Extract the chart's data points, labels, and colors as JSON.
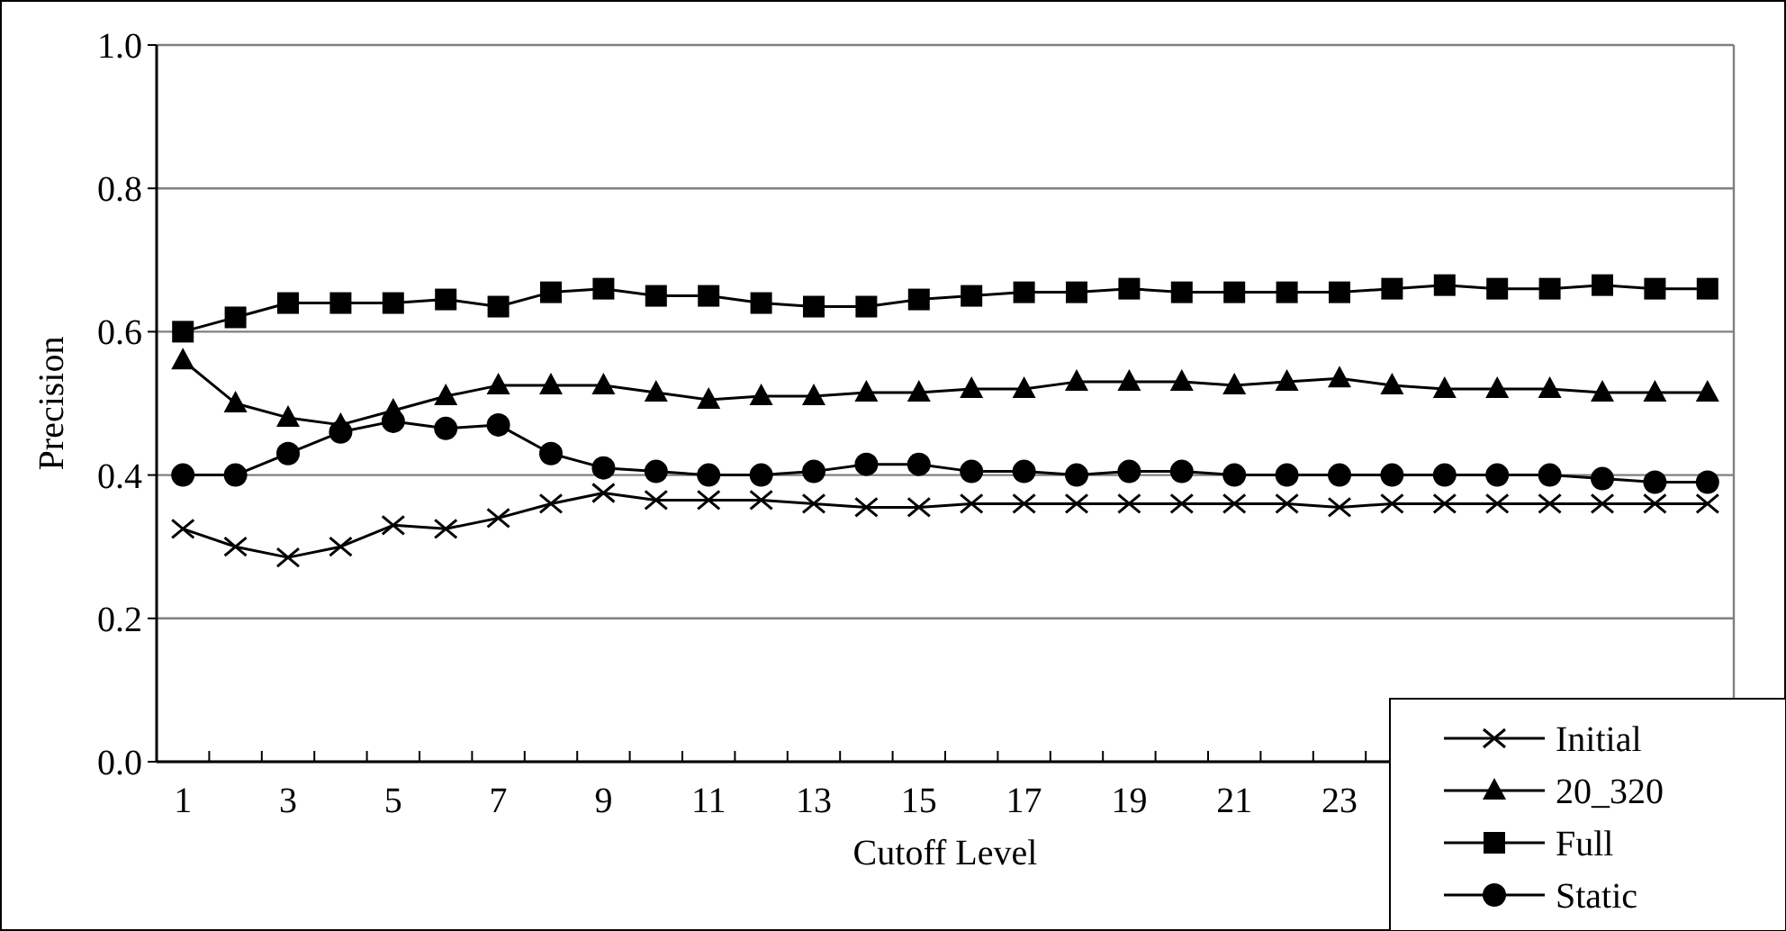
{
  "chart_data": {
    "type": "line",
    "xlabel": "Cutoff Level",
    "ylabel": "Precision",
    "x": [
      1,
      2,
      3,
      4,
      5,
      6,
      7,
      8,
      9,
      10,
      11,
      12,
      13,
      14,
      15,
      16,
      17,
      18,
      19,
      20,
      21,
      22,
      23,
      24,
      25,
      26,
      27,
      28,
      29,
      30
    ],
    "xlim": [
      0.5,
      30.5
    ],
    "xticks": [
      1,
      3,
      5,
      7,
      9,
      11,
      13,
      15,
      17,
      19,
      21,
      23,
      {
        "value": 0.5,
        "label": null
      },
      {
        "value": 1.5,
        "label": null
      },
      {
        "value": 2.5,
        "label": null
      },
      {
        "value": 3.5,
        "label": null
      },
      {
        "value": 4.5,
        "label": null
      },
      {
        "value": 5.5,
        "label": null
      },
      {
        "value": 6.5,
        "label": null
      },
      {
        "value": 7.5,
        "label": null
      },
      {
        "value": 8.5,
        "label": null
      },
      {
        "value": 9.5,
        "label": null
      },
      {
        "value": 10.5,
        "label": null
      },
      {
        "value": 11.5,
        "label": null
      },
      {
        "value": 12.5,
        "label": null
      },
      {
        "value": 13.5,
        "label": null
      },
      {
        "value": 14.5,
        "label": null
      },
      {
        "value": 15.5,
        "label": null
      },
      {
        "value": 16.5,
        "label": null
      },
      {
        "value": 17.5,
        "label": null
      },
      {
        "value": 18.5,
        "label": null
      },
      {
        "value": 19.5,
        "label": null
      },
      {
        "value": 20.5,
        "label": null
      },
      {
        "value": 21.5,
        "label": null
      },
      {
        "value": 22.5,
        "label": null
      },
      {
        "value": 23.5,
        "label": null
      }
    ],
    "series": [
      {
        "name": "Initial",
        "color": "#000000",
        "marker": "cross",
        "values": [
          0.325,
          0.3,
          0.285,
          0.3,
          0.33,
          0.325,
          0.34,
          0.36,
          0.375,
          0.365,
          0.365,
          0.365,
          0.36,
          0.355,
          0.355,
          0.36,
          0.36,
          0.36,
          0.36,
          0.36,
          0.36,
          0.36,
          0.355,
          0.36,
          0.36,
          0.36,
          0.36,
          0.36,
          0.36,
          0.36
        ]
      },
      {
        "name": "20_320",
        "color": "#000000",
        "marker": "triangle",
        "values": [
          0.56,
          0.5,
          0.48,
          0.47,
          0.49,
          0.51,
          0.525,
          0.525,
          0.525,
          0.515,
          0.505,
          0.51,
          0.51,
          0.515,
          0.515,
          0.52,
          0.52,
          0.53,
          0.53,
          0.53,
          0.525,
          0.53,
          0.535,
          0.525,
          0.52,
          0.52,
          0.52,
          0.515,
          0.515,
          0.515
        ]
      },
      {
        "name": "Full",
        "color": "#000000",
        "marker": "square",
        "values": [
          0.6,
          0.62,
          0.64,
          0.64,
          0.64,
          0.645,
          0.635,
          0.655,
          0.66,
          0.65,
          0.65,
          0.64,
          0.635,
          0.635,
          0.645,
          0.65,
          0.655,
          0.655,
          0.66,
          0.655,
          0.655,
          0.655,
          0.655,
          0.66,
          0.665,
          0.66,
          0.66,
          0.665,
          0.66,
          0.66
        ]
      },
      {
        "name": "Static",
        "color": "#000000",
        "marker": "circle",
        "values": [
          0.4,
          0.4,
          0.43,
          0.46,
          0.475,
          0.465,
          0.47,
          0.43,
          0.41,
          0.405,
          0.4,
          0.4,
          0.405,
          0.415,
          0.415,
          0.405,
          0.405,
          0.4,
          0.405,
          0.405,
          0.4,
          0.4,
          0.4,
          0.4,
          0.4,
          0.4,
          0.4,
          0.395,
          0.39,
          0.39
        ]
      }
    ],
    "ylim": [
      0,
      1
    ],
    "yticks": [
      {
        "value": 0,
        "label": "0.0"
      },
      {
        "value": 0.2,
        "label": "0.2"
      },
      {
        "value": 0.4,
        "label": "0.4"
      },
      {
        "value": 0.6,
        "label": "0.6"
      },
      {
        "value": 0.8,
        "label": "0.8"
      },
      {
        "value": 1,
        "label": "1.0"
      }
    ],
    "grid": "y",
    "legend": "bottom right",
    "line_style": "solid"
  }
}
